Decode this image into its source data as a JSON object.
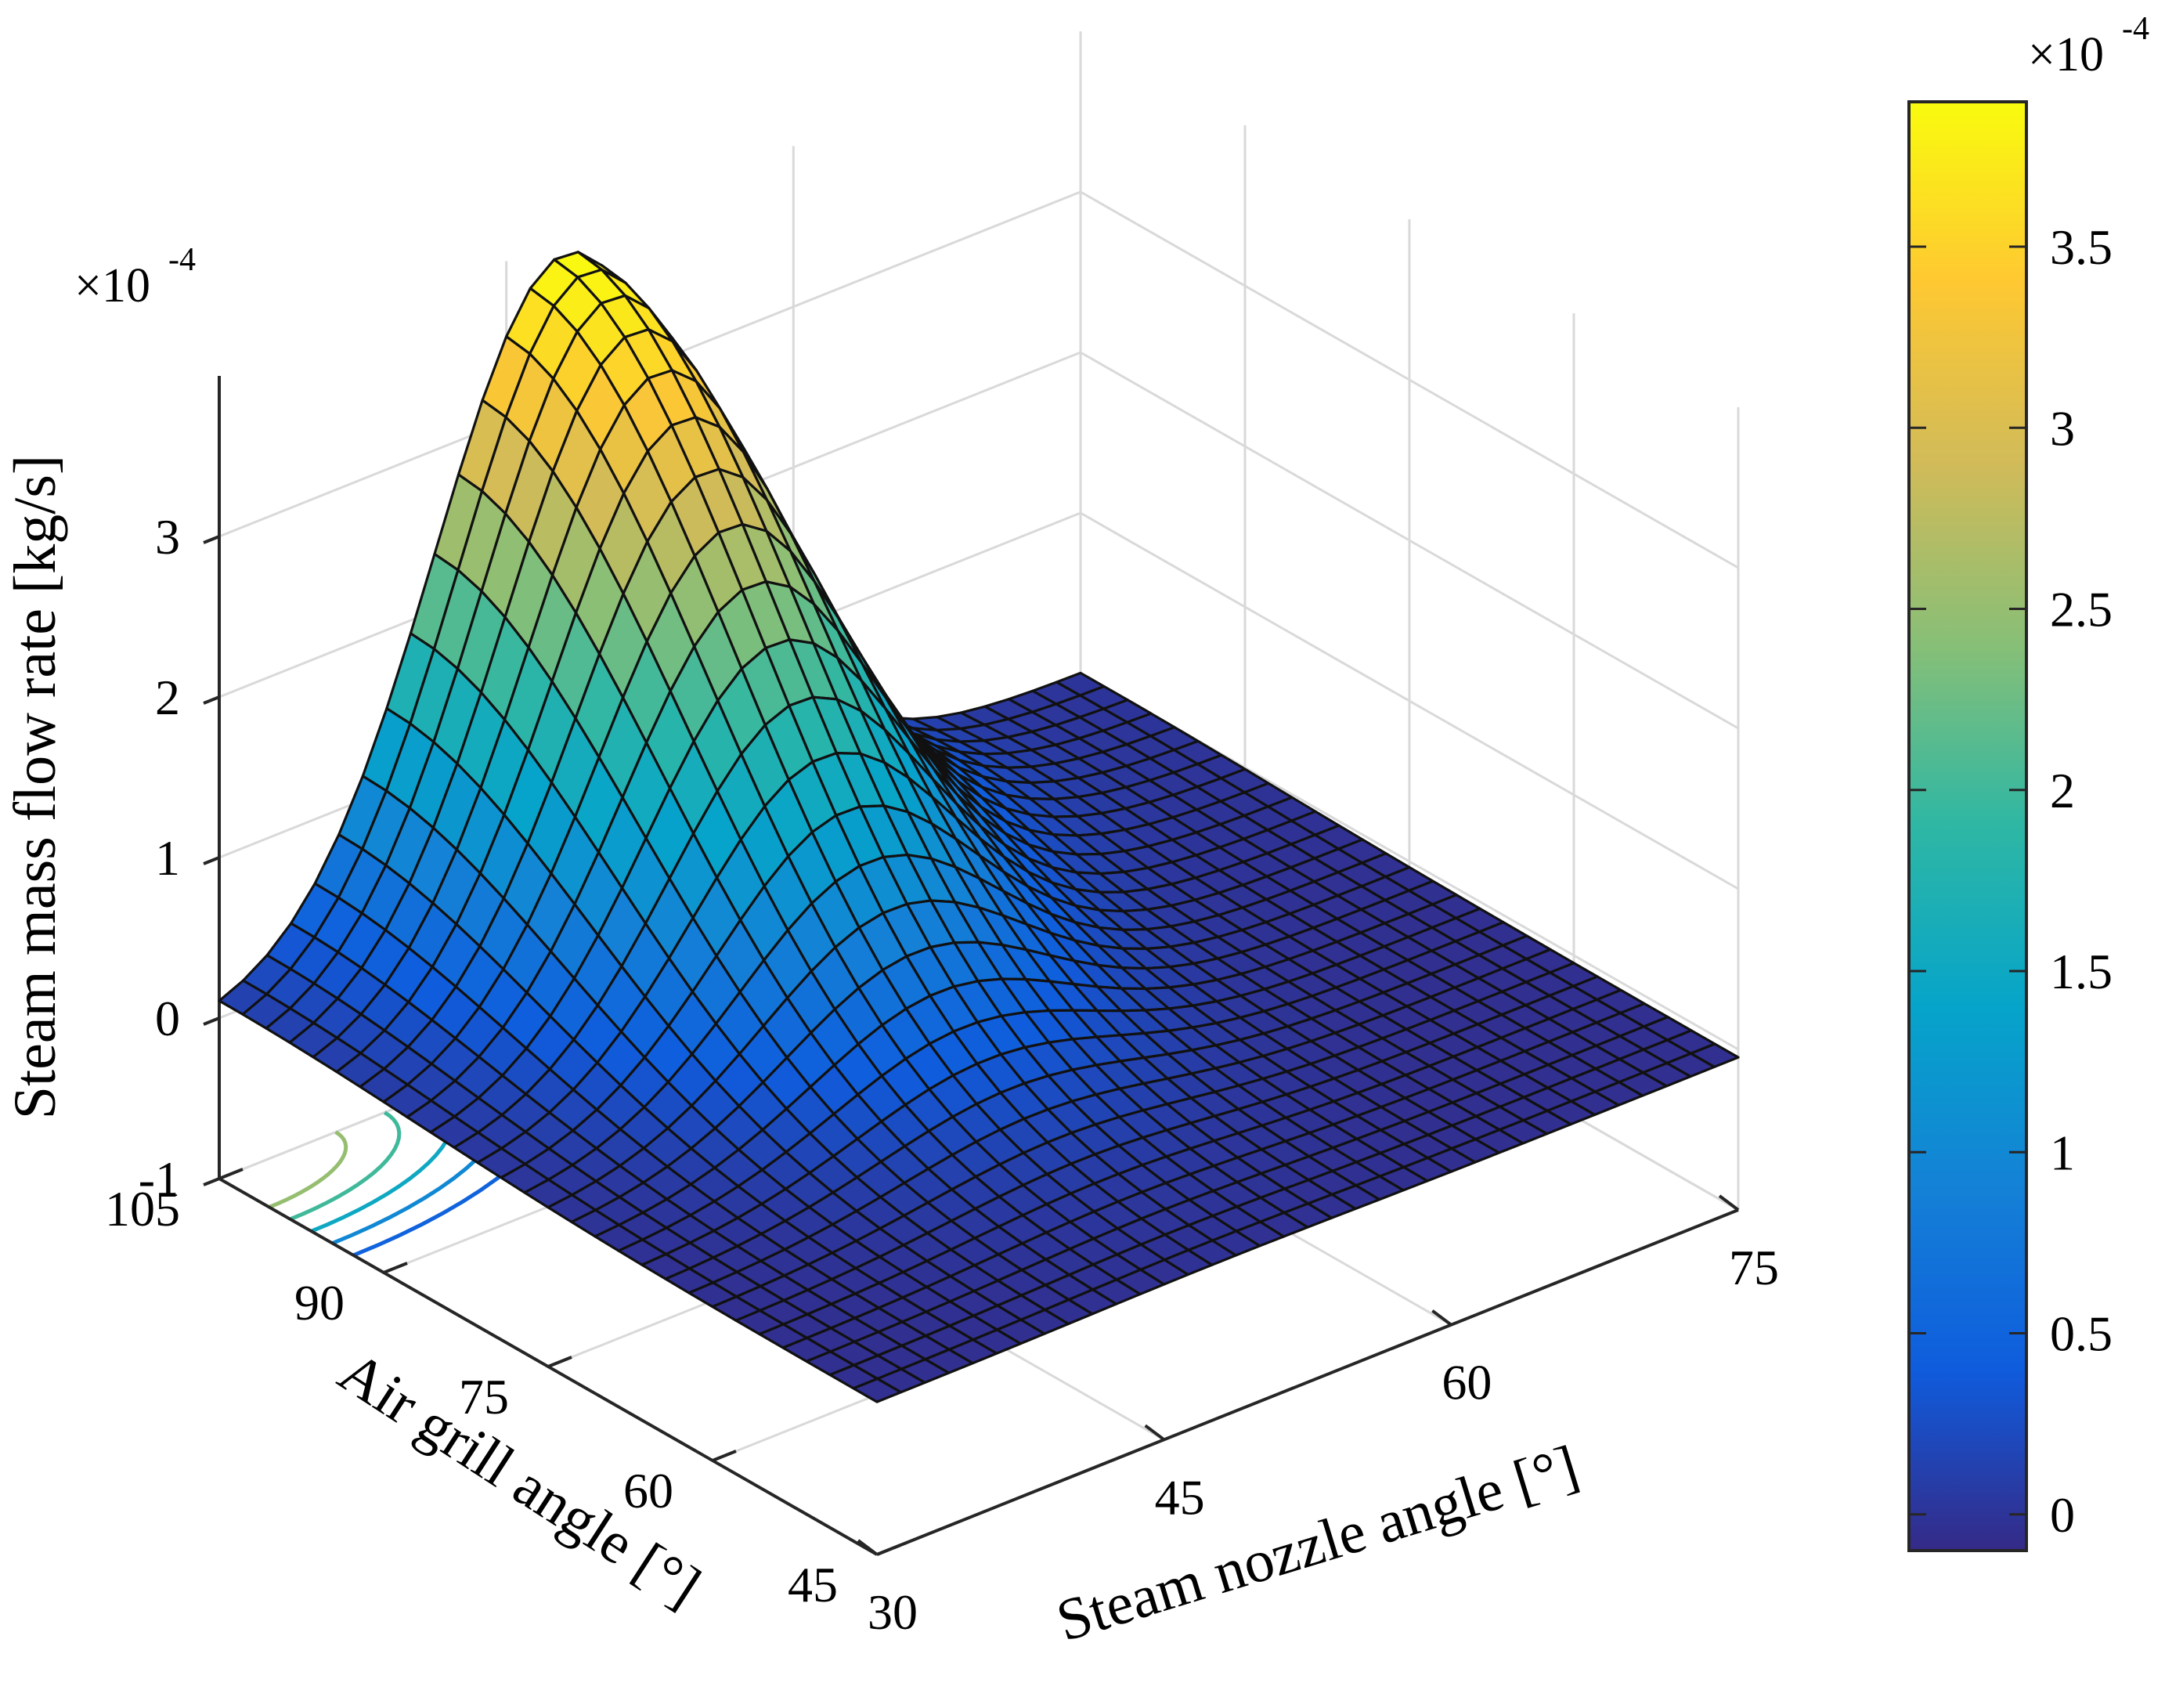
{
  "chart_data": {
    "type": "surface",
    "zlabel": "Steam mass flow rate [kg/s]",
    "xlabel": "Steam nozzle angle [°]",
    "ylabel": "Air grill angle [°]",
    "z_multiplier_base": "×10",
    "z_multiplier_exp": "-4",
    "x_ticks": [
      "30",
      "45",
      "60",
      "75"
    ],
    "y_ticks": [
      "105",
      "90",
      "75",
      "60",
      "45"
    ],
    "z_ticks": [
      "-1",
      "0",
      "1",
      "2",
      "3"
    ],
    "xlim": [
      30,
      75
    ],
    "ylim": [
      45,
      105
    ],
    "zlim": [
      -1,
      4
    ],
    "grid": true,
    "colormap": "parula",
    "colorbar": {
      "ticks": [
        "0",
        "0.5",
        "1",
        "1.5",
        "2",
        "2.5",
        "3",
        "3.5"
      ],
      "range": [
        -0.1,
        3.9
      ],
      "multiplier_base": "×10",
      "multiplier_exp": "-4",
      "colors": [
        "#352a87",
        "#0f5cdd",
        "#1481d6",
        "#06a4ca",
        "#2eb7a4",
        "#87bf77",
        "#d1bb59",
        "#fec832",
        "#f9fb0e"
      ]
    },
    "surface": {
      "description_of_values": "z = A*exp(-((y-105)/sy)^2)*exp(-((x-xc)/sx)^2) + small ripple; z in units of 1e-4 kg/s",
      "peak": {
        "x": 48,
        "y": 105,
        "z": 3.9
      },
      "corner_values": [
        {
          "x": 30,
          "y": 105,
          "z": 0.3
        },
        {
          "x": 75,
          "y": 105,
          "z": 0.0
        },
        {
          "x": 30,
          "y": 45,
          "z": 0.0
        },
        {
          "x": 75,
          "y": 45,
          "z": 0.0
        }
      ]
    },
    "contour_levels": [
      0.5,
      1.0,
      1.5,
      2.0,
      2.5
    ]
  }
}
